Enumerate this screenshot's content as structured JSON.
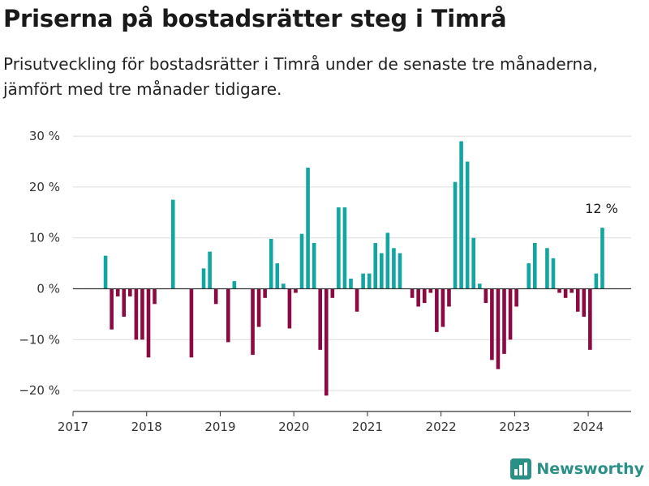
{
  "title": "Priserna på bostadsrätter steg i Timrå",
  "subtitle": "Prisutveckling för bostadsrätter i Timrå under de senaste tre månaderna, jämfört med tre månader tidigare.",
  "brand": {
    "name": "Newsworthy",
    "logo_icon": "newsworthy-bar-chart-logo-icon",
    "color": "#2a8f86"
  },
  "colors": {
    "positive": "#13a5a0",
    "negative": "#8c0a42",
    "grid": "#dcdcdc",
    "axis": "#333333",
    "zero_line": "#333333"
  },
  "chart_data": {
    "type": "bar",
    "title": "Priserna på bostadsrätter steg i Timrå",
    "subtitle": "Prisutveckling för bostadsrätter i Timrå under de senaste tre månaderna, jämfört med tre månader tidigare.",
    "xlabel": "",
    "ylabel": "",
    "x_unit": "month",
    "xlim": [
      "2017-01",
      "2024-08"
    ],
    "ylim": [
      -24,
      31
    ],
    "y_ticks": [
      30,
      20,
      10,
      0,
      -10,
      -20
    ],
    "y_tick_labels": [
      "30 %",
      "20 %",
      "10 %",
      "0 %",
      "−10 %",
      "−20 %"
    ],
    "x_ticks": [
      "2017-01",
      "2018-01",
      "2019-01",
      "2020-01",
      "2021-01",
      "2022-01",
      "2023-01",
      "2024-01"
    ],
    "x_tick_labels": [
      "2017",
      "2018",
      "2019",
      "2020",
      "2021",
      "2022",
      "2023",
      "2024"
    ],
    "grid": "horizontal",
    "months": [
      "2017-06",
      "2017-07",
      "2017-08",
      "2017-09",
      "2017-10",
      "2017-11",
      "2017-12",
      "2018-01",
      "2018-02",
      "2018-03",
      "2018-04",
      "2018-05",
      "2018-06",
      "2018-07",
      "2018-08",
      "2018-09",
      "2018-10",
      "2018-11",
      "2018-12",
      "2019-01",
      "2019-02",
      "2019-03",
      "2019-04",
      "2019-05",
      "2019-06",
      "2019-07",
      "2019-08",
      "2019-09",
      "2019-10",
      "2019-11",
      "2019-12",
      "2020-01",
      "2020-02",
      "2020-03",
      "2020-04",
      "2020-05",
      "2020-06",
      "2020-07",
      "2020-08",
      "2020-09",
      "2020-10",
      "2020-11",
      "2020-12",
      "2021-01",
      "2021-02",
      "2021-03",
      "2021-04",
      "2021-05",
      "2021-06",
      "2021-07",
      "2021-08",
      "2021-09",
      "2021-10",
      "2021-11",
      "2021-12",
      "2022-01",
      "2022-02",
      "2022-03",
      "2022-04",
      "2022-05",
      "2022-06",
      "2022-07",
      "2022-08",
      "2022-09",
      "2022-10",
      "2022-11",
      "2022-12",
      "2023-01",
      "2023-02",
      "2023-03",
      "2023-04",
      "2023-05",
      "2023-06",
      "2023-07",
      "2023-08",
      "2023-09",
      "2023-10",
      "2023-11",
      "2023-12",
      "2024-01",
      "2024-02",
      "2024-03"
    ],
    "values": [
      6.5,
      -8,
      -1.5,
      -5.5,
      -1.5,
      -10,
      -10,
      -13.5,
      -3,
      null,
      null,
      17.5,
      null,
      null,
      -13.5,
      null,
      4,
      7.3,
      -3,
      null,
      -10.5,
      1.5,
      null,
      null,
      -13,
      -7.5,
      -1.8,
      9.8,
      5,
      1,
      -7.8,
      -0.8,
      10.8,
      23.8,
      9,
      -12,
      -21,
      -1.8,
      16,
      16,
      2,
      -4.5,
      3,
      3,
      9,
      7,
      11,
      8,
      7,
      null,
      -1.8,
      -3.5,
      -2.8,
      -0.8,
      -8.5,
      -7.5,
      -3.5,
      21,
      29,
      25,
      10,
      1,
      -2.8,
      -14,
      -15.8,
      -12.8,
      -10,
      -3.5,
      null,
      5,
      9,
      null,
      8,
      6,
      -0.8,
      -1.8,
      -0.8,
      -4.5,
      -5.5,
      -12,
      3,
      12
    ],
    "annotations": [
      {
        "month": "2024-03",
        "label": "12 %"
      }
    ]
  }
}
